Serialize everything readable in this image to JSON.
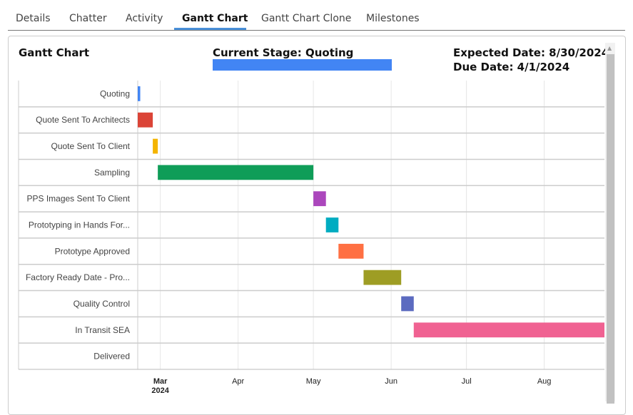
{
  "tabs": [
    {
      "label": "Details"
    },
    {
      "label": "Chatter"
    },
    {
      "label": "Activity"
    },
    {
      "label": "Gantt Chart",
      "active": true
    },
    {
      "label": "Gantt Chart Clone"
    },
    {
      "label": "Milestones"
    }
  ],
  "header": {
    "title": "Gantt Chart",
    "current_stage": "Current Stage: Quoting",
    "expected_date": "Expected Date: 8/30/2024",
    "due_date": "Due Date: 4/1/2024",
    "stage_bar_color": "#4285f4"
  },
  "chart_data": {
    "type": "gantt",
    "xlim": [
      "2024-02-21",
      "2024-08-25"
    ],
    "x_ticks": [
      {
        "label": "Mar",
        "sub": "2024",
        "date": "2024-03-01"
      },
      {
        "label": "Apr",
        "date": "2024-04-01"
      },
      {
        "label": "May",
        "date": "2024-05-01"
      },
      {
        "label": "Jun",
        "date": "2024-06-01"
      },
      {
        "label": "Jul",
        "date": "2024-07-01"
      },
      {
        "label": "Aug",
        "date": "2024-08-01"
      }
    ],
    "tasks": [
      {
        "name": "Quoting",
        "start": "2024-02-21",
        "end": "2024-02-22",
        "color": "#4285f4"
      },
      {
        "name": "Quote Sent To Architects",
        "start": "2024-02-21",
        "end": "2024-02-27",
        "color": "#db4437"
      },
      {
        "name": "Quote Sent To Client",
        "start": "2024-02-27",
        "end": "2024-02-29",
        "color": "#f4b400"
      },
      {
        "name": "Sampling",
        "start": "2024-02-29",
        "end": "2024-05-01",
        "color": "#0f9d58"
      },
      {
        "name": "PPS Images Sent To Client",
        "start": "2024-05-01",
        "end": "2024-05-06",
        "color": "#ab47bc"
      },
      {
        "name": "Prototyping in Hands For...",
        "start": "2024-05-06",
        "end": "2024-05-11",
        "color": "#00acc1"
      },
      {
        "name": "Prototype Approved",
        "start": "2024-05-11",
        "end": "2024-05-21",
        "color": "#ff7043"
      },
      {
        "name": "Factory Ready Date - Pro...",
        "start": "2024-05-21",
        "end": "2024-06-05",
        "color": "#9e9d24"
      },
      {
        "name": "Quality Control",
        "start": "2024-06-05",
        "end": "2024-06-10",
        "color": "#5c6bc0"
      },
      {
        "name": "In Transit SEA",
        "start": "2024-06-10",
        "end": "2024-08-25",
        "color": "#f06292"
      },
      {
        "name": "Delivered"
      }
    ]
  }
}
